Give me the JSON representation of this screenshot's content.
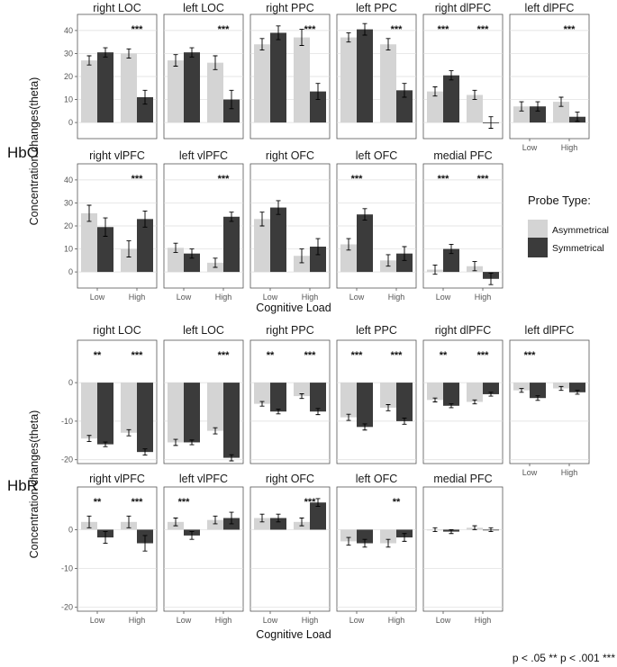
{
  "figure": {
    "footnote": "p < .05 ** p < .001 ***",
    "legend": {
      "title": "Probe Type:",
      "entries": [
        {
          "label": "Asymmetrical",
          "color": "#d4d4d4"
        },
        {
          "label": "Symmetrical",
          "color": "#3b3b3b"
        }
      ]
    }
  },
  "chart_data": [
    {
      "type": "bar",
      "measure": "HbO",
      "row_label": "HbO",
      "ylabel": "Concentration changes(theta)",
      "xlabel": "Cognitive Load",
      "categories": [
        "Low",
        "High"
      ],
      "series_names": [
        "Asymmetrical",
        "Symmetrical"
      ],
      "ylim": [
        -7,
        47
      ],
      "yticks": [
        0,
        10,
        20,
        30,
        40
      ],
      "panels": [
        {
          "title": "right LOC",
          "asym": [
            {
              "v": 27,
              "e": 2
            },
            {
              "v": 30,
              "e": 2
            }
          ],
          "sym": [
            {
              "v": 30.5,
              "e": 2
            },
            {
              "v": 11,
              "e": 3
            }
          ],
          "sig": [
            "",
            "***"
          ]
        },
        {
          "title": "left LOC",
          "asym": [
            {
              "v": 27,
              "e": 2.5
            },
            {
              "v": 26,
              "e": 3
            }
          ],
          "sym": [
            {
              "v": 30.5,
              "e": 2
            },
            {
              "v": 10,
              "e": 4
            }
          ],
          "sig": [
            "",
            "***"
          ]
        },
        {
          "title": "right PPC",
          "asym": [
            {
              "v": 34,
              "e": 2.5
            },
            {
              "v": 37,
              "e": 3.5
            }
          ],
          "sym": [
            {
              "v": 39,
              "e": 3
            },
            {
              "v": 13.5,
              "e": 3.5
            }
          ],
          "sig": [
            "",
            "***"
          ]
        },
        {
          "title": "left PPC",
          "asym": [
            {
              "v": 37,
              "e": 2
            },
            {
              "v": 34,
              "e": 2.5
            }
          ],
          "sym": [
            {
              "v": 40.5,
              "e": 2.5
            },
            {
              "v": 14,
              "e": 3
            }
          ],
          "sig": [
            "",
            "***"
          ]
        },
        {
          "title": "right dlPFC",
          "asym": [
            {
              "v": 13.5,
              "e": 2
            },
            {
              "v": 12,
              "e": 2
            }
          ],
          "sym": [
            {
              "v": 20.5,
              "e": 2
            },
            {
              "v": 0,
              "e": 2.5
            }
          ],
          "sig": [
            "***",
            "***"
          ]
        },
        {
          "title": "left dlPFC",
          "asym": [
            {
              "v": 7,
              "e": 2
            },
            {
              "v": 9,
              "e": 2
            }
          ],
          "sym": [
            {
              "v": 7,
              "e": 2
            },
            {
              "v": 2.5,
              "e": 2
            }
          ],
          "sig": [
            "",
            "***"
          ],
          "show_x_ticks": true
        },
        {
          "title": "right vlPFC",
          "asym": [
            {
              "v": 25.5,
              "e": 3.5
            },
            {
              "v": 10,
              "e": 3.5
            }
          ],
          "sym": [
            {
              "v": 19.5,
              "e": 4
            },
            {
              "v": 23,
              "e": 3.5
            }
          ],
          "sig": [
            "",
            "***"
          ]
        },
        {
          "title": "left vlPFC",
          "asym": [
            {
              "v": 10.5,
              "e": 2
            },
            {
              "v": 4,
              "e": 2
            }
          ],
          "sym": [
            {
              "v": 8,
              "e": 2
            },
            {
              "v": 24,
              "e": 2
            }
          ],
          "sig": [
            "",
            "***"
          ]
        },
        {
          "title": "right OFC",
          "asym": [
            {
              "v": 23,
              "e": 3
            },
            {
              "v": 7,
              "e": 3
            }
          ],
          "sym": [
            {
              "v": 28,
              "e": 3
            },
            {
              "v": 11,
              "e": 3.5
            }
          ],
          "sig": [
            "",
            ""
          ]
        },
        {
          "title": "left OFC",
          "asym": [
            {
              "v": 12,
              "e": 2.5
            },
            {
              "v": 5,
              "e": 2.5
            }
          ],
          "sym": [
            {
              "v": 25,
              "e": 2.5
            },
            {
              "v": 8,
              "e": 3
            }
          ],
          "sig": [
            "***",
            ""
          ]
        },
        {
          "title": "medial PFC",
          "asym": [
            {
              "v": 1,
              "e": 2
            },
            {
              "v": 2.5,
              "e": 2
            }
          ],
          "sym": [
            {
              "v": 10,
              "e": 2
            },
            {
              "v": -3,
              "e": 2.5
            }
          ],
          "sig": [
            "***",
            "***"
          ]
        }
      ]
    },
    {
      "type": "bar",
      "measure": "HbR",
      "row_label": "HbR",
      "ylabel": "Concentration changes(theta)",
      "xlabel": "Cognitive Load",
      "categories": [
        "Low",
        "High"
      ],
      "series_names": [
        "Asymmetrical",
        "Symmetrical"
      ],
      "ylim": [
        -21,
        11
      ],
      "yticks": [
        0,
        -10,
        -20
      ],
      "panels": [
        {
          "title": "right LOC",
          "asym": [
            {
              "v": -14.5,
              "e": 0.8
            },
            {
              "v": -13,
              "e": 0.8
            }
          ],
          "sym": [
            {
              "v": -16,
              "e": 0.6
            },
            {
              "v": -18,
              "e": 0.8
            }
          ],
          "sig": [
            "**",
            "***"
          ]
        },
        {
          "title": "left LOC",
          "asym": [
            {
              "v": -15.5,
              "e": 0.8
            },
            {
              "v": -12.5,
              "e": 0.8
            }
          ],
          "sym": [
            {
              "v": -15.5,
              "e": 0.6
            },
            {
              "v": -19.5,
              "e": 0.8
            }
          ],
          "sig": [
            "",
            "***"
          ]
        },
        {
          "title": "right PPC",
          "asym": [
            {
              "v": -5.5,
              "e": 0.6
            },
            {
              "v": -3.5,
              "e": 0.6
            }
          ],
          "sym": [
            {
              "v": -7.5,
              "e": 0.6
            },
            {
              "v": -7.5,
              "e": 0.8
            }
          ],
          "sig": [
            "**",
            "***"
          ]
        },
        {
          "title": "left PPC",
          "asym": [
            {
              "v": -9,
              "e": 0.8
            },
            {
              "v": -6.5,
              "e": 0.8
            }
          ],
          "sym": [
            {
              "v": -11.5,
              "e": 0.8
            },
            {
              "v": -10,
              "e": 0.8
            }
          ],
          "sig": [
            "***",
            "***"
          ]
        },
        {
          "title": "right dlPFC",
          "asym": [
            {
              "v": -4.5,
              "e": 0.5
            },
            {
              "v": -5,
              "e": 0.5
            }
          ],
          "sym": [
            {
              "v": -6,
              "e": 0.5
            },
            {
              "v": -3,
              "e": 0.5
            }
          ],
          "sig": [
            "**",
            "***"
          ]
        },
        {
          "title": "left dlPFC",
          "asym": [
            {
              "v": -2,
              "e": 0.5
            },
            {
              "v": -1.5,
              "e": 0.5
            }
          ],
          "sym": [
            {
              "v": -4,
              "e": 0.6
            },
            {
              "v": -2.5,
              "e": 0.5
            }
          ],
          "sig": [
            "***",
            ""
          ],
          "show_x_ticks": true
        },
        {
          "title": "right vlPFC",
          "asym": [
            {
              "v": 2,
              "e": 1.5
            },
            {
              "v": 2,
              "e": 1.5
            }
          ],
          "sym": [
            {
              "v": -2,
              "e": 1.5
            },
            {
              "v": -3.5,
              "e": 2
            }
          ],
          "sig": [
            "**",
            "***"
          ]
        },
        {
          "title": "left vlPFC",
          "asym": [
            {
              "v": 2,
              "e": 1
            },
            {
              "v": 2.5,
              "e": 1
            }
          ],
          "sym": [
            {
              "v": -1.5,
              "e": 1
            },
            {
              "v": 3,
              "e": 1.5
            }
          ],
          "sig": [
            "***",
            ""
          ]
        },
        {
          "title": "right OFC",
          "asym": [
            {
              "v": 3,
              "e": 1
            },
            {
              "v": 2,
              "e": 1
            }
          ],
          "sym": [
            {
              "v": 3,
              "e": 1
            },
            {
              "v": 7,
              "e": 1
            }
          ],
          "sig": [
            "",
            "***"
          ]
        },
        {
          "title": "left OFC",
          "asym": [
            {
              "v": -3,
              "e": 1
            },
            {
              "v": -3.5,
              "e": 1
            }
          ],
          "sym": [
            {
              "v": -3.5,
              "e": 1
            },
            {
              "v": -2,
              "e": 1
            }
          ],
          "sig": [
            "",
            "**"
          ]
        },
        {
          "title": "medial PFC",
          "asym": [
            {
              "v": 0,
              "e": 0.5
            },
            {
              "v": 0.5,
              "e": 0.5
            }
          ],
          "sym": [
            {
              "v": -0.5,
              "e": 0.5
            },
            {
              "v": 0,
              "e": 0.5
            }
          ],
          "sig": [
            "",
            ""
          ]
        }
      ]
    }
  ]
}
